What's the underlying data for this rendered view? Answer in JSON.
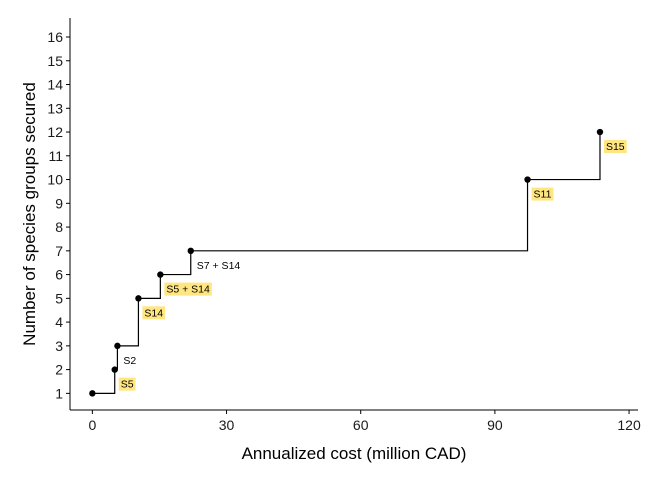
{
  "chart_data": {
    "type": "line",
    "step": "hv",
    "xlabel": "Annualized cost (million CAD)",
    "ylabel": "Number of species groups secured",
    "xlim": [
      -5,
      122
    ],
    "ylim": [
      0.3,
      16.8
    ],
    "x_ticks": [
      0,
      30,
      60,
      90,
      120
    ],
    "y_ticks": [
      1,
      2,
      3,
      4,
      5,
      6,
      7,
      8,
      9,
      10,
      11,
      12,
      13,
      14,
      15,
      16
    ],
    "grid": false,
    "legend": "none",
    "points": [
      {
        "x": 0,
        "y": 1
      },
      {
        "x": 5,
        "y": 2
      },
      {
        "x": 5.6,
        "y": 3
      },
      {
        "x": 10.3,
        "y": 5
      },
      {
        "x": 15.2,
        "y": 6
      },
      {
        "x": 22,
        "y": 7
      },
      {
        "x": 97.3,
        "y": 10
      },
      {
        "x": 113.5,
        "y": 12
      }
    ],
    "annotations": [
      {
        "label": "S5",
        "x": 5,
        "y": 2,
        "highlight": true
      },
      {
        "label": "S2",
        "x": 5.6,
        "y": 3,
        "highlight": false
      },
      {
        "label": "S14",
        "x": 10.3,
        "y": 5,
        "highlight": true
      },
      {
        "label": "S5 + S14",
        "x": 15.2,
        "y": 6,
        "highlight": true
      },
      {
        "label": "S7 + S14",
        "x": 22,
        "y": 7,
        "highlight": false
      },
      {
        "label": "S11",
        "x": 97.3,
        "y": 10,
        "highlight": true
      },
      {
        "label": "S15",
        "x": 113.5,
        "y": 12,
        "highlight": true
      }
    ],
    "colors": {
      "line": "#000000",
      "highlight": "#FFE680"
    }
  }
}
